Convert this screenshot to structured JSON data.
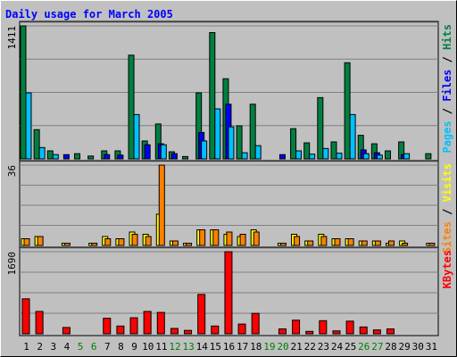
{
  "chart_data": {
    "type": "bar",
    "title": "Daily usage for March 2005",
    "days": [
      "1",
      "2",
      "3",
      "4",
      "5",
      "6",
      "7",
      "8",
      "9",
      "10",
      "11",
      "12",
      "13",
      "14",
      "15",
      "16",
      "17",
      "18",
      "19",
      "20",
      "21",
      "22",
      "23",
      "24",
      "25",
      "26",
      "27",
      "28",
      "29",
      "30",
      "31"
    ],
    "weekend_days": [
      "5",
      "6",
      "12",
      "13",
      "19",
      "20",
      "26",
      "27"
    ],
    "colors": {
      "hits": "#008040",
      "files": "#0000ff",
      "pages": "#00c0ff",
      "visits": "#ffff00",
      "sites": "#ff8000",
      "kbytes": "#ff0000",
      "title": "#0000ff",
      "weekday": "#000000",
      "weekend": "#008000"
    },
    "panels": [
      {
        "id": "top",
        "max_label": "1411",
        "ymax": 1411,
        "legend": [
          {
            "text": "Pages",
            "color": "#00c0ff"
          },
          {
            "text": " / ",
            "color": "#000000"
          },
          {
            "text": "Files",
            "color": "#0000ff"
          },
          {
            "text": " / ",
            "color": "#000000"
          },
          {
            "text": "Hits",
            "color": "#008040"
          }
        ],
        "series": [
          {
            "name": "Hits",
            "color": "#008040",
            "values": [
              1411,
              310,
              85,
              0,
              55,
              30,
              85,
              85,
              1100,
              190,
              370,
              75,
              25,
              700,
              1340,
              850,
              350,
              580,
              0,
              0,
              320,
              170,
              650,
              180,
              1020,
              250,
              160,
              85,
              180,
              0,
              55
            ]
          },
          {
            "name": "Files",
            "color": "#0000ff",
            "values": [
              0,
              0,
              0,
              45,
              0,
              0,
              45,
              40,
              0,
              150,
              160,
              55,
              0,
              280,
              0,
              580,
              0,
              0,
              0,
              45,
              0,
              0,
              0,
              0,
              0,
              95,
              65,
              0,
              45,
              0,
              0
            ]
          },
          {
            "name": "Pages",
            "color": "#00c0ff",
            "values": [
              700,
              120,
              45,
              0,
              0,
              0,
              0,
              0,
              470,
              0,
              150,
              0,
              0,
              190,
              530,
              340,
              65,
              140,
              0,
              0,
              85,
              50,
              110,
              60,
              470,
              55,
              40,
              0,
              55,
              0,
              0
            ]
          }
        ]
      },
      {
        "id": "middle",
        "max_label": "36",
        "ymax": 36,
        "legend": [
          {
            "text": "Sites",
            "color": "#ff8000"
          },
          {
            "text": " / ",
            "color": "#000000"
          },
          {
            "text": "Visits",
            "color": "#ffff00"
          }
        ],
        "series": [
          {
            "name": "Visits",
            "color": "#ffff00",
            "values": [
              3,
              4,
              0,
              1,
              0,
              1,
              4,
              3,
              6,
              5,
              14,
              2,
              1,
              7,
              7,
              5,
              4,
              7,
              0,
              1,
              5,
              2,
              5,
              3,
              3,
              2,
              2,
              1,
              2,
              0,
              1
            ]
          },
          {
            "name": "Sites",
            "color": "#ff8000",
            "values": [
              3,
              4,
              0,
              1,
              0,
              1,
              3,
              3,
              5,
              4,
              36,
              2,
              1,
              7,
              7,
              6,
              5,
              6,
              0,
              1,
              4,
              2,
              4,
              3,
              3,
              2,
              2,
              2,
              1,
              0,
              1
            ]
          }
        ]
      },
      {
        "id": "bottom",
        "max_label": "1690",
        "ymax": 1690,
        "legend": [
          {
            "text": "KBytes",
            "color": "#ff0000"
          }
        ],
        "series": [
          {
            "name": "KBytes",
            "color": "#ff0000",
            "values": [
              720,
              460,
              0,
              130,
              0,
              0,
              320,
              160,
              330,
              460,
              440,
              110,
              70,
              810,
              160,
              1690,
              200,
              420,
              0,
              100,
              280,
              50,
              270,
              60,
              260,
              140,
              80,
              100,
              0,
              0,
              0
            ]
          }
        ]
      }
    ]
  }
}
